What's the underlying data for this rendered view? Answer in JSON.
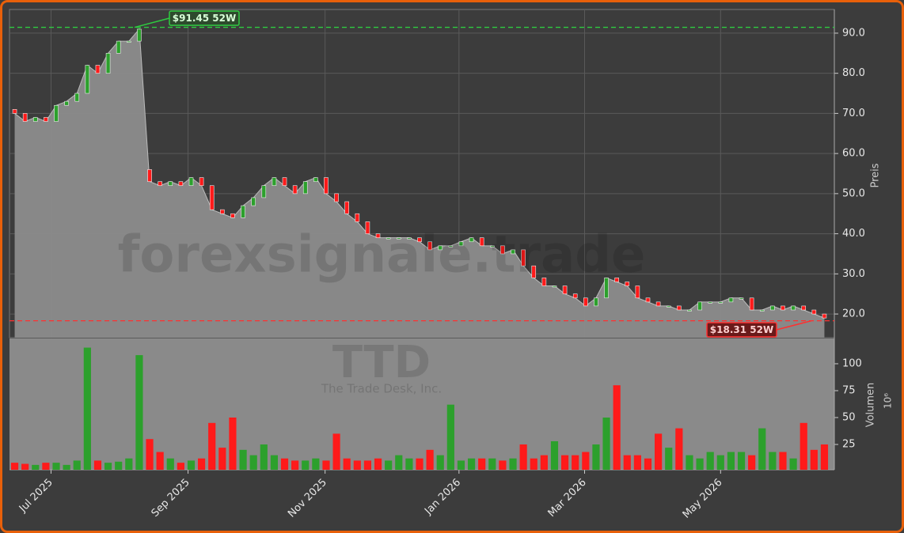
{
  "chart_data": {
    "type": "candlestick",
    "watermark": "forexsignale.trade",
    "ticker": "TTD",
    "company": "The Trade Desk, Inc.",
    "ylabel": "Preis",
    "y2label": "Volumen",
    "y2unit": "10⁶",
    "xlim": [
      -0.5,
      78.5
    ],
    "xticks": [
      {
        "value": 3.5,
        "label": "Jul 2025"
      },
      {
        "value": 16.7,
        "label": "Sep 2025"
      },
      {
        "value": 29.9,
        "label": "Nov 2025"
      },
      {
        "value": 42.8,
        "label": "Jan 2026"
      },
      {
        "value": 54.9,
        "label": "Mar 2026"
      },
      {
        "value": 68.0,
        "label": "May 2026"
      }
    ],
    "ylim": [
      14.1,
      95.9
    ],
    "yticks": [
      {
        "value": 20,
        "label": "20.0"
      },
      {
        "value": 30,
        "label": "30.0"
      },
      {
        "value": 40,
        "label": "40.0"
      },
      {
        "value": 50,
        "label": "50.0"
      },
      {
        "value": 60,
        "label": "60.0"
      },
      {
        "value": 70,
        "label": "70.0"
      },
      {
        "value": 80,
        "label": "80.0"
      },
      {
        "value": 90,
        "label": "90.0"
      }
    ],
    "y2lim": [
      1.5,
      123.5
    ],
    "y2ticks": [
      25,
      50,
      75,
      100
    ],
    "grid": true,
    "up_color": "#2ca02c",
    "down_color": "#ff1a1a",
    "area_color": "#8c8c8c",
    "open": [
      71,
      70,
      68,
      69,
      68,
      72,
      73,
      75,
      82,
      80,
      85,
      88,
      88,
      56,
      53,
      52,
      53,
      52,
      54,
      52,
      46,
      45,
      44,
      47,
      49,
      52,
      54,
      52,
      50,
      53,
      54,
      50,
      48,
      45,
      43,
      40,
      39,
      39,
      39,
      39,
      38,
      36,
      37,
      37,
      38,
      39,
      37,
      37,
      35,
      36,
      32,
      29,
      27,
      27,
      25,
      24,
      22,
      24,
      29,
      28,
      27,
      24,
      23,
      22,
      22,
      21,
      21,
      23,
      23,
      23,
      24,
      24,
      21,
      21,
      22,
      21,
      22,
      21,
      20
    ],
    "close": [
      70,
      68,
      69,
      68,
      72,
      73,
      75,
      82,
      80,
      85,
      88,
      88,
      91,
      53,
      52,
      53,
      52,
      54,
      52,
      46,
      45,
      44,
      47,
      49,
      52,
      54,
      52,
      50,
      53,
      54,
      50,
      48,
      45,
      43,
      40,
      39,
      39,
      39,
      39,
      38,
      36,
      37,
      37,
      38,
      39,
      37,
      37,
      35,
      36,
      32,
      29,
      27,
      27,
      25,
      24,
      22,
      24,
      29,
      28,
      27,
      24,
      23,
      22,
      22,
      21,
      21,
      23,
      23,
      23,
      24,
      24,
      21,
      21,
      22,
      21,
      22,
      21,
      20,
      19
    ],
    "volume": [
      8,
      7,
      6,
      8,
      8,
      6,
      10,
      115,
      10,
      8,
      9,
      12,
      108,
      30,
      18,
      12,
      8,
      10,
      12,
      45,
      22,
      50,
      20,
      15,
      25,
      15,
      12,
      10,
      10,
      12,
      10,
      35,
      12,
      10,
      10,
      12,
      10,
      15,
      12,
      12,
      20,
      15,
      62,
      10,
      12,
      12,
      12,
      10,
      12,
      25,
      12,
      15,
      28,
      15,
      15,
      18,
      25,
      50,
      80,
      15,
      15,
      12,
      35,
      22,
      40,
      15,
      12,
      18,
      15,
      18,
      18,
      15,
      40,
      18,
      18,
      12,
      45,
      20,
      25
    ],
    "annotations": [
      {
        "value": 91.45,
        "label": "$91.45 52W",
        "color": "#2ecc40"
      },
      {
        "value": 18.31,
        "label": "$18.31 52W",
        "color": "#ff3030"
      }
    ]
  }
}
